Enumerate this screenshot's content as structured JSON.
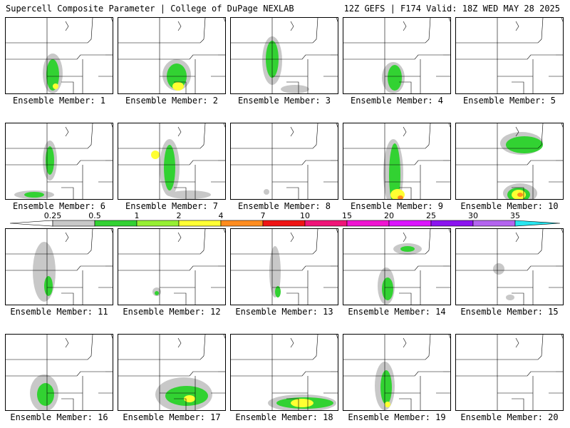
{
  "header": {
    "left": "Supercell Composite Parameter | College of DuPage NEXLAB",
    "right": "12Z GEFS | F174 Valid: 18Z WED MAY 28 2025"
  },
  "members": [
    {
      "label": "Ensemble Member: 1"
    },
    {
      "label": "Ensemble Member: 2"
    },
    {
      "label": "Ensemble Member: 3"
    },
    {
      "label": "Ensemble Member: 4"
    },
    {
      "label": "Ensemble Member: 5"
    },
    {
      "label": "Ensemble Member: 6"
    },
    {
      "label": "Ensemble Member: 7"
    },
    {
      "label": "Ensemble Member: 8"
    },
    {
      "label": "Ensemble Member: 9"
    },
    {
      "label": "Ensemble Member: 10"
    },
    {
      "label": "Ensemble Member: 11"
    },
    {
      "label": "Ensemble Member: 12"
    },
    {
      "label": "Ensemble Member: 13"
    },
    {
      "label": "Ensemble Member: 14"
    },
    {
      "label": "Ensemble Member: 15"
    },
    {
      "label": "Ensemble Member: 16"
    },
    {
      "label": "Ensemble Member: 17"
    },
    {
      "label": "Ensemble Member: 18"
    },
    {
      "label": "Ensemble Member: 19"
    },
    {
      "label": "Ensemble Member: 20"
    }
  ],
  "colorbar": {
    "ticks": [
      "0.25",
      "0.5",
      "1",
      "2",
      "4",
      "7",
      "10",
      "15",
      "20",
      "25",
      "30",
      "35"
    ],
    "colors": [
      "#ffffff",
      "#c8c8c8",
      "#32d232",
      "#96f032",
      "#ffff32",
      "#ff8c1e",
      "#f01414",
      "#f01478",
      "#f014d2",
      "#dc14ff",
      "#8c14f0",
      "#b464f0",
      "#28e6f0"
    ]
  },
  "colors": {
    "gray": "#c8c8c8",
    "green": "#32d232",
    "lightgreen": "#96f032",
    "yellow": "#ffff32",
    "orange": "#ff8c1e",
    "red": "#f01414"
  }
}
